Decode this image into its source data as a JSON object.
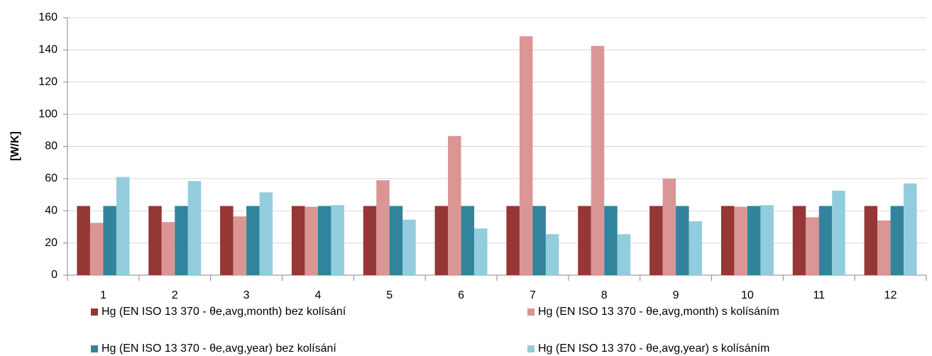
{
  "chart_data": {
    "type": "bar",
    "ylabel": "[W/K]",
    "categories": [
      "1",
      "2",
      "3",
      "4",
      "5",
      "6",
      "7",
      "8",
      "9",
      "10",
      "11",
      "12"
    ],
    "series": [
      {
        "name": "Hg (EN ISO 13 370 - θe,avg,month) bez kolísání",
        "color": "#953735",
        "values": [
          43,
          43,
          43,
          43,
          43,
          43,
          43,
          43,
          43,
          43,
          43,
          43
        ]
      },
      {
        "name": "Hg (EN ISO 13 370 - θe,avg,month) s kolísáním",
        "color": "#d99694",
        "values": [
          32.5,
          33,
          36.5,
          42.5,
          59,
          86.5,
          148.5,
          142.5,
          60,
          42.5,
          36,
          34
        ]
      },
      {
        "name": "Hg (EN ISO 13 370 - θe,avg,year) bez kolísání",
        "color": "#31849b",
        "values": [
          43,
          43,
          43,
          43,
          43,
          43,
          43,
          43,
          43,
          43,
          43,
          43
        ]
      },
      {
        "name": "Hg (EN ISO 13 370 - θe,avg,year) s kolísáním",
        "color": "#93cddd",
        "values": [
          61,
          58.5,
          51.5,
          43.5,
          34.5,
          29,
          25.5,
          25.5,
          33.5,
          43.5,
          52.5,
          57
        ]
      }
    ],
    "ylim": [
      0,
      160
    ],
    "yticks": [
      0,
      20,
      40,
      60,
      80,
      100,
      120,
      140,
      160
    ],
    "grid": true
  }
}
